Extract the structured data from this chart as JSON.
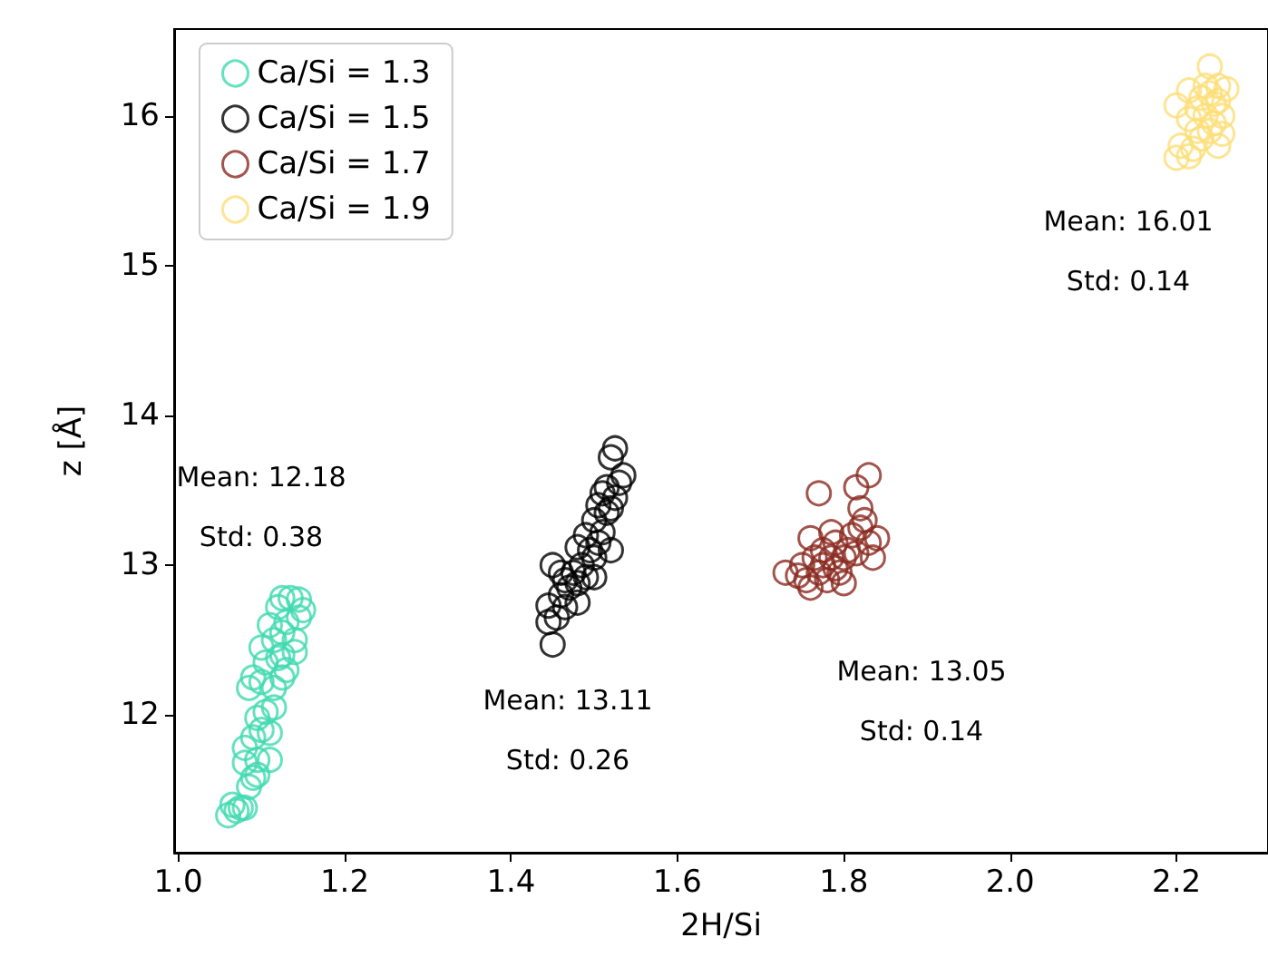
{
  "chart_data": {
    "type": "scatter",
    "xlabel": "2H/Si",
    "ylabel": "z [Å]",
    "xlim": [
      0.995,
      2.31
    ],
    "ylim": [
      11.08,
      16.58
    ],
    "xticks": [
      {
        "value": 1,
        "label": "1.0"
      },
      1.2,
      1.4,
      1.6,
      1.8,
      {
        "value": 2,
        "label": "2.0"
      },
      2.2
    ],
    "yticks": [
      12,
      13,
      14,
      15,
      16
    ],
    "grid": false,
    "legend": "top left",
    "marker": "circle",
    "series": [
      {
        "name": "Ca/Si = 1.3",
        "color": "#40d9b0",
        "x": [
          1.06,
          1.065,
          1.07,
          1.075,
          1.08,
          1.085,
          1.09,
          1.095,
          1.08,
          1.095,
          1.11,
          1.08,
          1.09,
          1.1,
          1.11,
          1.095,
          1.105,
          1.115,
          1.085,
          1.1,
          1.115,
          1.125,
          1.09,
          1.105,
          1.12,
          1.13,
          1.1,
          1.115,
          1.125,
          1.14,
          1.11,
          1.13,
          1.145,
          1.12,
          1.135,
          1.145,
          1.125,
          1.15,
          1.14,
          1.125
        ],
        "values": [
          11.33,
          11.4,
          11.36,
          11.38,
          11.38,
          11.52,
          11.58,
          11.6,
          11.68,
          11.7,
          11.7,
          11.78,
          11.85,
          11.9,
          11.88,
          11.98,
          12.02,
          12.05,
          12.18,
          12.22,
          12.18,
          12.25,
          12.25,
          12.35,
          12.38,
          12.3,
          12.45,
          12.5,
          12.55,
          12.5,
          12.6,
          12.62,
          12.65,
          12.72,
          12.78,
          12.77,
          12.78,
          12.7,
          12.42,
          12.4
        ]
      },
      {
        "name": "Ca/Si = 1.5",
        "color": "#000000",
        "x": [
          1.45,
          1.445,
          1.455,
          1.445,
          1.465,
          1.46,
          1.47,
          1.48,
          1.465,
          1.475,
          1.45,
          1.49,
          1.485,
          1.5,
          1.495,
          1.48,
          1.505,
          1.49,
          1.51,
          1.5,
          1.515,
          1.505,
          1.52,
          1.51,
          1.525,
          1.515,
          1.53,
          1.535,
          1.52,
          1.525,
          1.52,
          1.48,
          1.5,
          1.46
        ],
        "values": [
          12.47,
          12.62,
          12.65,
          12.73,
          12.72,
          12.8,
          12.85,
          12.88,
          12.9,
          12.95,
          13.0,
          12.92,
          13.0,
          13.05,
          13.1,
          13.12,
          13.15,
          13.2,
          13.22,
          13.3,
          13.35,
          13.4,
          13.38,
          13.48,
          13.45,
          13.52,
          13.55,
          13.6,
          13.72,
          13.78,
          13.1,
          12.75,
          12.92,
          12.95
        ]
      },
      {
        "name": "Ca/Si = 1.7",
        "color": "#8b2a20",
        "x": [
          1.73,
          1.745,
          1.75,
          1.755,
          1.76,
          1.765,
          1.77,
          1.775,
          1.78,
          1.775,
          1.785,
          1.79,
          1.79,
          1.8,
          1.805,
          1.795,
          1.81,
          1.815,
          1.8,
          1.82,
          1.825,
          1.83,
          1.835,
          1.84,
          1.82,
          1.815,
          1.83,
          1.77,
          1.76,
          1.785
        ],
        "values": [
          12.95,
          12.93,
          13.0,
          12.9,
          12.85,
          13.05,
          12.95,
          13.0,
          12.9,
          13.1,
          13.05,
          12.98,
          13.15,
          13.05,
          13.1,
          12.95,
          13.2,
          13.08,
          12.88,
          13.25,
          13.3,
          13.15,
          13.05,
          13.18,
          13.38,
          13.52,
          13.6,
          13.48,
          13.18,
          13.22
        ]
      },
      {
        "name": "Ca/Si = 1.9",
        "color": "#fddf78",
        "x": [
          2.2,
          2.205,
          2.215,
          2.22,
          2.225,
          2.215,
          2.2,
          2.225,
          2.23,
          2.235,
          2.24,
          2.235,
          2.245,
          2.25,
          2.245,
          2.255,
          2.25,
          2.26,
          2.255,
          2.24,
          2.23,
          2.215,
          2.25,
          2.24
        ],
        "values": [
          15.72,
          15.8,
          15.73,
          15.78,
          15.9,
          15.98,
          16.07,
          16.05,
          16.12,
          16.2,
          16.15,
          16.0,
          16.08,
          16.2,
          15.95,
          15.88,
          16.1,
          16.18,
          16.0,
          16.33,
          15.85,
          16.17,
          15.8,
          15.9
        ]
      }
    ],
    "annotations": [
      "Mean: 12.18",
      "Std: 0.38",
      "Mean: 13.11",
      "Std: 0.26",
      "Mean: 13.05",
      "Std: 0.14",
      "Mean: 16.01",
      "Std: 0.14"
    ]
  }
}
